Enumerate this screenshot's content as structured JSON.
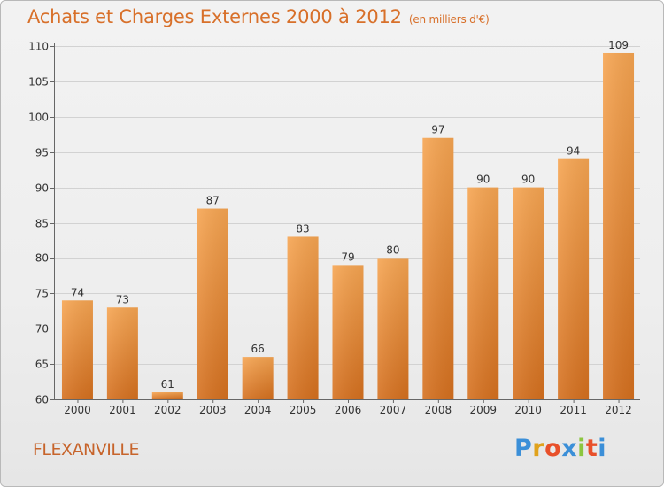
{
  "header": {
    "title": "Achats et Charges Externes 2000 à 2012",
    "subtitle": "(en milliers d'€)"
  },
  "footer": {
    "commune": "FLEXANVILLE",
    "brand_letters": [
      "P",
      "r",
      "o",
      "x",
      "i",
      "t",
      "i"
    ],
    "brand_colors": [
      "#3b8fd8",
      "#e0a21c",
      "#e8502a",
      "#3b8fd8",
      "#8cc63f",
      "#e8502a",
      "#3b8fd8"
    ]
  },
  "colors": {
    "bar_light": "#f6a552",
    "bar_dark": "#d5701f",
    "label": "#333333",
    "axis": "#666666",
    "grid": "#d2d2d2"
  },
  "chart_data": {
    "type": "bar",
    "title": "Achats et Charges Externes 2000 à 2012",
    "subtitle": "(en milliers d'€)",
    "categories": [
      "2000",
      "2001",
      "2002",
      "2003",
      "2004",
      "2005",
      "2006",
      "2007",
      "2008",
      "2009",
      "2010",
      "2011",
      "2012"
    ],
    "values": [
      74,
      73,
      61,
      87,
      66,
      83,
      79,
      80,
      97,
      90,
      90,
      94,
      109
    ],
    "ylim": [
      60,
      110
    ],
    "yticks": [
      60,
      65,
      70,
      75,
      80,
      85,
      90,
      95,
      100,
      105,
      110
    ],
    "grid": true,
    "xlabel": "",
    "ylabel": ""
  }
}
